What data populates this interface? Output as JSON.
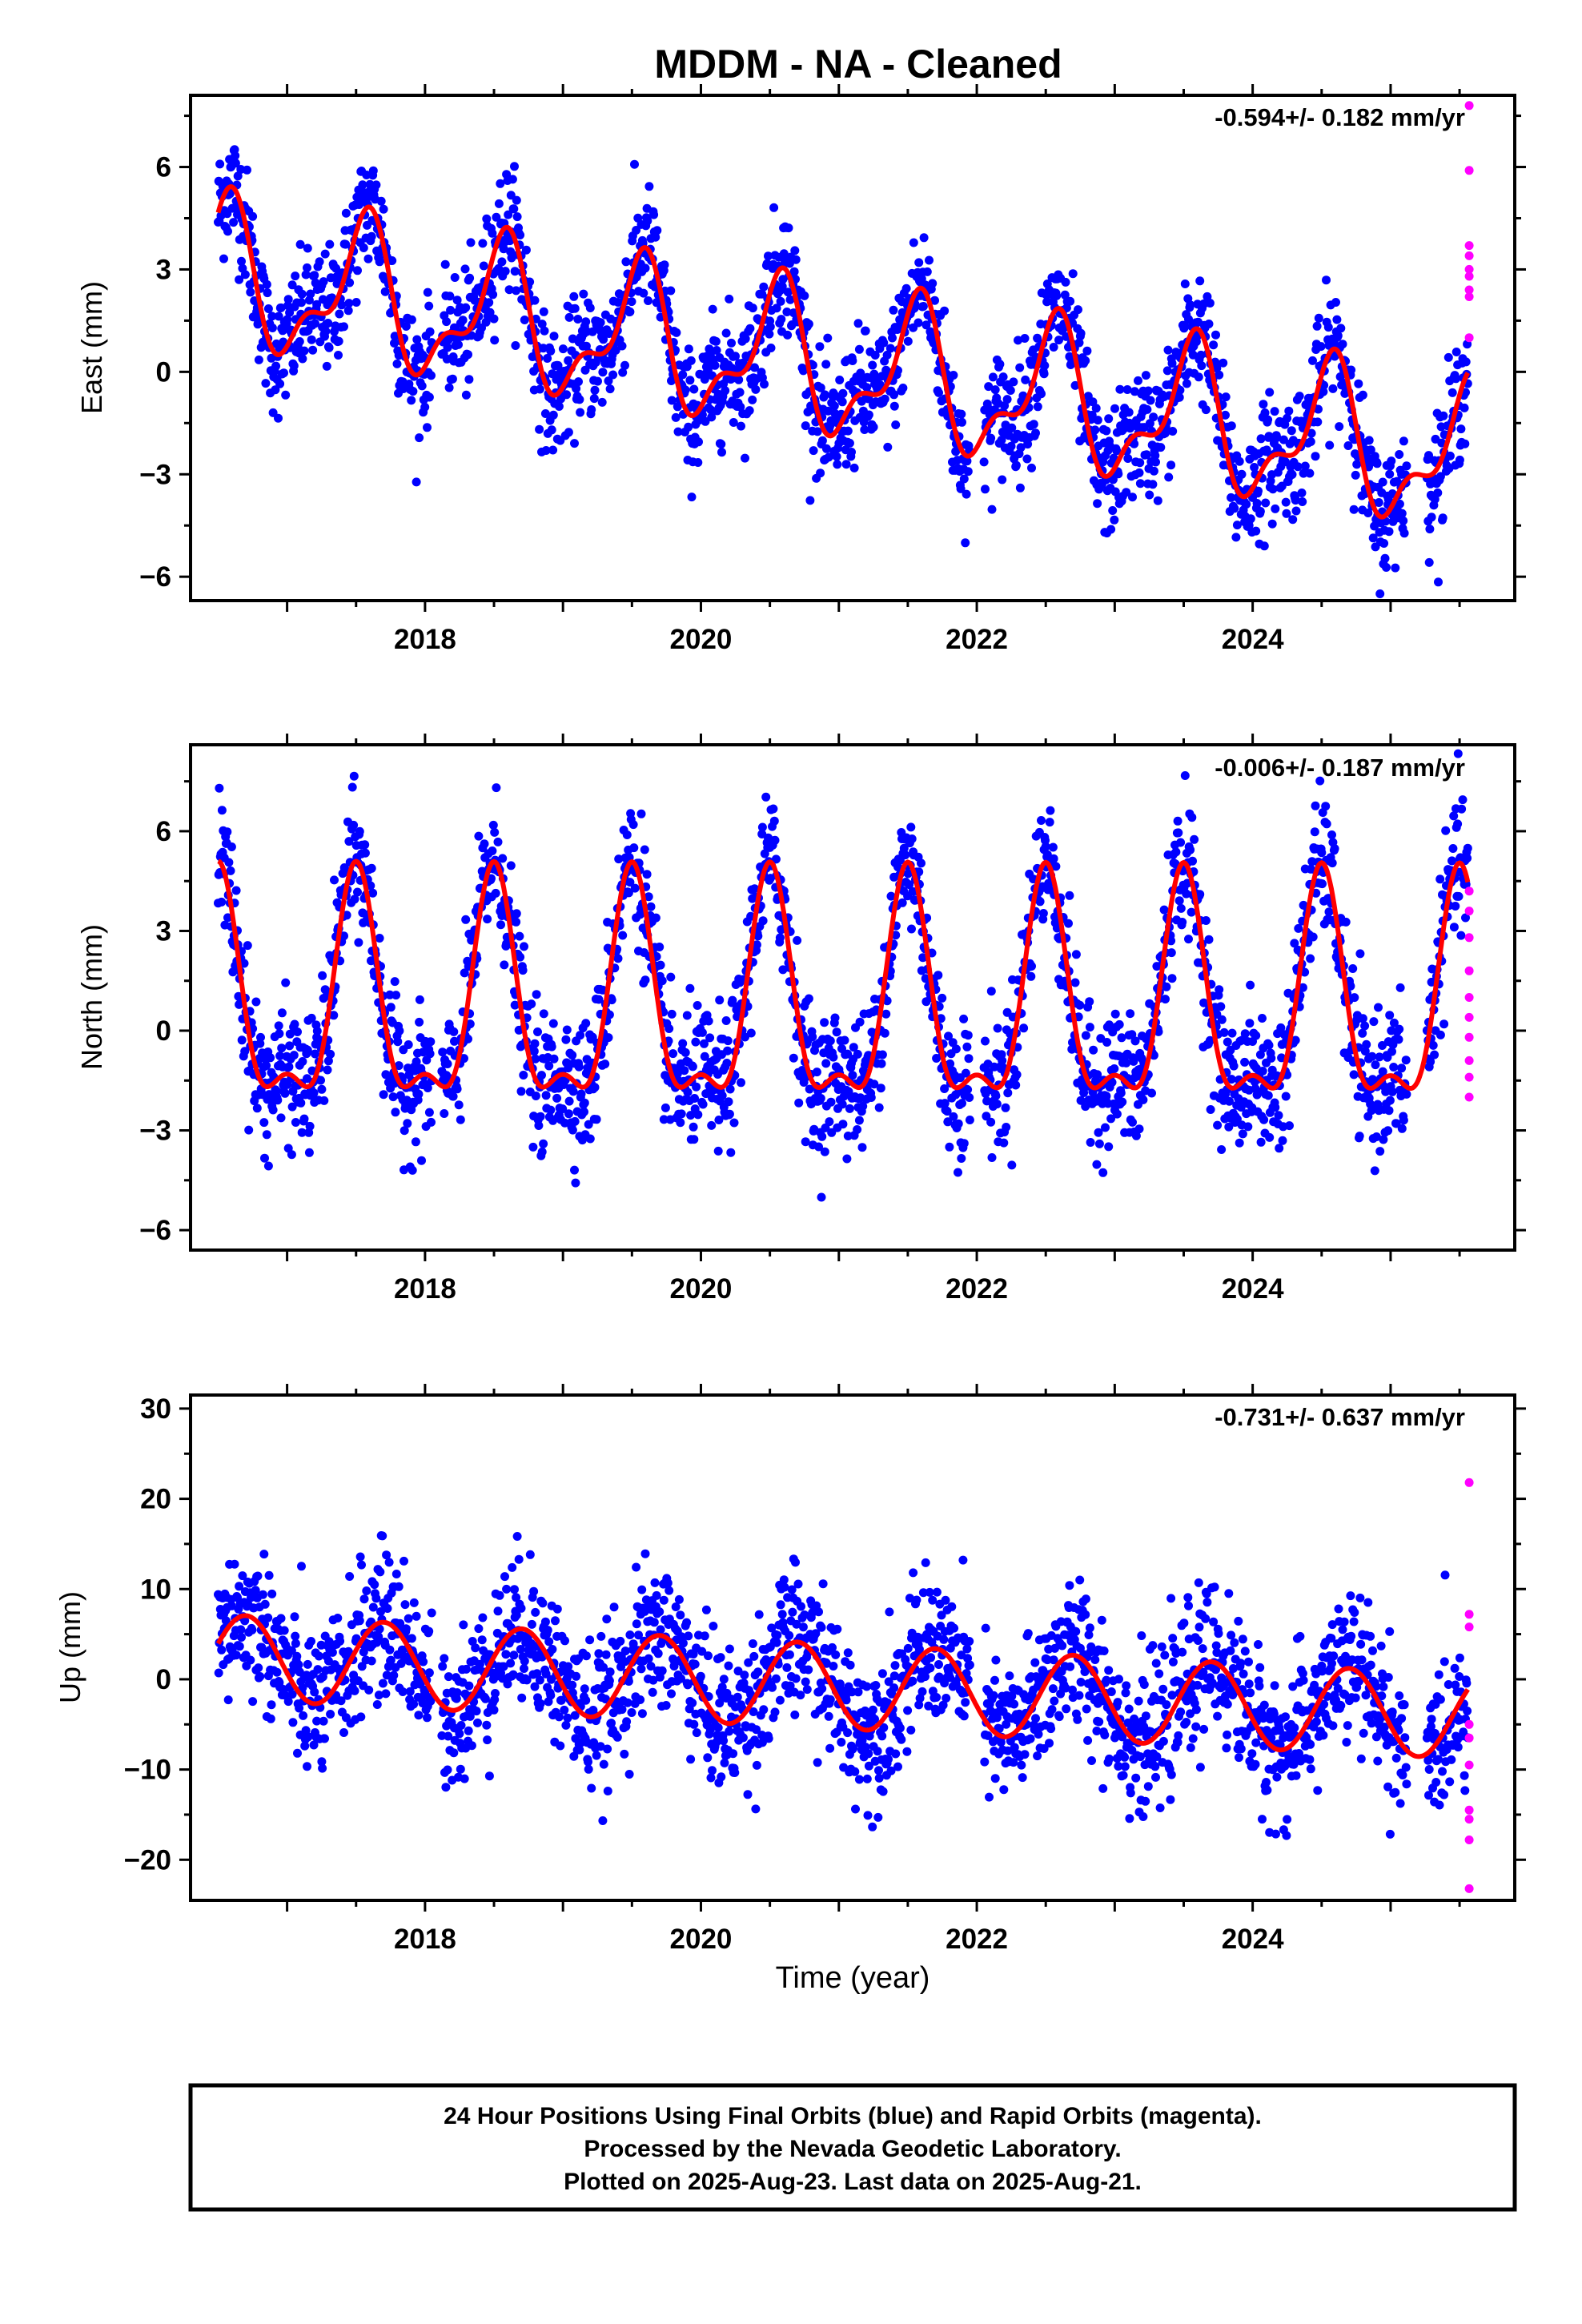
{
  "title": "MDDM  - NA - Cleaned",
  "xlabel": "Time (year)",
  "footer": {
    "line1": "24 Hour Positions Using Final Orbits (blue) and Rapid Orbits (magenta).",
    "line2": "Processed by the Nevada Geodetic Laboratory.",
    "line3": "Plotted on 2025-Aug-23. Last data on 2025-Aug-21."
  },
  "colors": {
    "final_orbits": "#0000ff",
    "rapid_orbits": "#ff00ff",
    "model_fit": "#ff0000"
  },
  "chart_data": [
    {
      "type": "scatter",
      "panel": "east",
      "ylabel": "East (mm)",
      "rate_label": "-0.594+/- 0.182 mm/yr",
      "xlim": [
        2016.3,
        2025.9
      ],
      "ylim": [
        -6.7,
        8.1
      ],
      "xticks": [
        2018,
        2020,
        2022,
        2024
      ],
      "yticks": [
        -6,
        -3,
        0,
        3,
        6
      ],
      "series": [
        {
          "name": "Final Orbits",
          "color": "#0000ff",
          "model": {
            "rate": -0.594,
            "offset": 2.8,
            "amp1": 1.9,
            "phase1": 0.55,
            "amp2": 0.9,
            "phase2": 0.62
          },
          "noise_sd": 0.9,
          "x": [
            2016.5,
            2016.7,
            2016.9,
            2017.2,
            2017.5,
            2017.8,
            2018.1,
            2018.4,
            2018.7,
            2019.0,
            2019.3,
            2019.6,
            2019.9,
            2020.2,
            2020.5,
            2020.8,
            2021.1,
            2021.4,
            2021.7,
            2022.0,
            2022.3,
            2022.6,
            2022.9,
            2023.2,
            2023.5,
            2023.8,
            2024.1,
            2024.4,
            2024.7,
            2025.0,
            2025.3,
            2025.5
          ],
          "y": [
            3.0,
            4.8,
            2.4,
            0.9,
            3.1,
            1.0,
            0.4,
            0.4,
            3.2,
            0.0,
            -0.5,
            2.8,
            0.4,
            -0.8,
            1.9,
            -0.4,
            -1.4,
            -0.8,
            1.5,
            -1.7,
            -1.9,
            1.1,
            -1.4,
            -2.7,
            0.2,
            -1.4,
            -3.1,
            -1.2,
            -0.2,
            -3.1,
            -3.7,
            -2.0
          ]
        },
        {
          "name": "Rapid Orbits",
          "color": "#ff00ff",
          "x": [
            2025.57,
            2025.57,
            2025.57,
            2025.57,
            2025.57,
            2025.57,
            2025.57,
            2025.57,
            2025.57
          ],
          "y": [
            7.8,
            5.9,
            3.7,
            3.4,
            3.0,
            2.8,
            2.4,
            2.2,
            1.0
          ]
        }
      ]
    },
    {
      "type": "scatter",
      "panel": "north",
      "ylabel": "North (mm)",
      "rate_label": "-0.006+/- 0.187 mm/yr",
      "xlim": [
        2016.3,
        2025.9
      ],
      "ylim": [
        -6.6,
        8.6
      ],
      "xticks": [
        2018,
        2020,
        2022,
        2024
      ],
      "yticks": [
        -6,
        -3,
        0,
        3,
        6
      ],
      "series": [
        {
          "name": "Final Orbits",
          "color": "#0000ff",
          "model": {
            "rate": -0.006,
            "offset": 0.6,
            "amp1": 3.2,
            "phase1": 0.5,
            "amp2": 1.3,
            "phase2": 0.5
          },
          "noise_sd": 1.0,
          "x": [
            2016.5,
            2016.6,
            2016.9,
            2017.2,
            2017.5,
            2017.9,
            2018.2,
            2018.5,
            2018.9,
            2019.2,
            2019.5,
            2019.9,
            2020.2,
            2020.5,
            2020.9,
            2021.2,
            2021.5,
            2021.9,
            2022.2,
            2022.5,
            2022.9,
            2023.2,
            2023.5,
            2023.9,
            2024.2,
            2024.5,
            2024.8,
            2025.1,
            2025.5
          ],
          "y": [
            3.5,
            4.8,
            -2.3,
            -1.2,
            4.6,
            -2.4,
            -1.5,
            4.7,
            -2.4,
            -1.5,
            4.7,
            -2.4,
            -1.5,
            4.7,
            -2.4,
            -1.4,
            4.6,
            -2.4,
            -1.5,
            4.7,
            -2.4,
            -1.6,
            4.6,
            -2.4,
            -1.5,
            4.7,
            -2.2,
            -1.5,
            4.6
          ]
        },
        {
          "name": "Rapid Orbits",
          "color": "#ff00ff",
          "x": [
            2025.57,
            2025.57,
            2025.57,
            2025.57,
            2025.57,
            2025.57,
            2025.57,
            2025.57,
            2025.57,
            2025.57
          ],
          "y": [
            4.2,
            3.6,
            2.8,
            1.8,
            1.0,
            0.4,
            -0.2,
            -0.9,
            -1.4,
            -2.0
          ]
        }
      ]
    },
    {
      "type": "scatter",
      "panel": "up",
      "ylabel": "Up (mm)",
      "rate_label": "-0.731+/- 0.637 mm/yr",
      "xlim": [
        2016.3,
        2025.9
      ],
      "ylim": [
        -24.5,
        31.5
      ],
      "xticks": [
        2018,
        2020,
        2022,
        2024
      ],
      "yticks": [
        -20,
        -10,
        0,
        10,
        20,
        30
      ],
      "series": [
        {
          "name": "Final Orbits",
          "color": "#0000ff",
          "model": {
            "rate": -0.731,
            "offset": 2.5,
            "amp1": 4.7,
            "phase1": 0.7
          },
          "noise_sd": 4.0,
          "x": [
            2016.5,
            2016.8,
            2017.2,
            2017.7,
            2018.2,
            2018.7,
            2019.2,
            2019.7,
            2020.2,
            2020.7,
            2021.2,
            2021.7,
            2022.2,
            2022.7,
            2023.2,
            2023.7,
            2024.2,
            2024.7,
            2025.2,
            2025.5
          ],
          "y": [
            1.5,
            6.8,
            -2.5,
            6.0,
            -3.0,
            5.4,
            -3.8,
            4.6,
            -4.5,
            3.8,
            -5.2,
            3.1,
            -6.0,
            2.4,
            -6.7,
            1.7,
            -7.4,
            1.0,
            -8.2,
            -0.5
          ]
        },
        {
          "name": "Rapid Orbits",
          "color": "#ff00ff",
          "x": [
            2025.57,
            2025.57,
            2025.57,
            2025.57,
            2025.57,
            2025.57,
            2025.57,
            2025.57,
            2025.57,
            2025.57
          ],
          "y": [
            21.8,
            7.2,
            5.8,
            -5.0,
            -6.5,
            -9.5,
            -14.5,
            -15.5,
            -17.8,
            -23.2
          ]
        }
      ]
    }
  ]
}
